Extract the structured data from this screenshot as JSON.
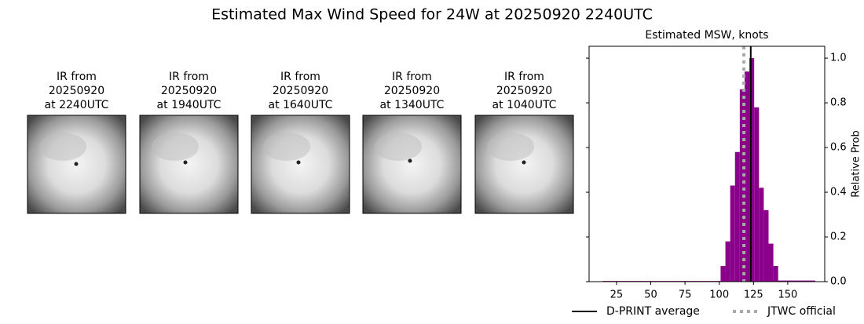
{
  "title": "Estimated Max Wind Speed for 24W at 20250920 2240UTC",
  "panels": [
    {
      "lines": [
        "IR from",
        "20250920",
        "at 2240UTC"
      ]
    },
    {
      "lines": [
        "IR from",
        "20250920",
        "at 1940UTC"
      ]
    },
    {
      "lines": [
        "IR from",
        "20250920",
        "at 1640UTC"
      ]
    },
    {
      "lines": [
        "IR from",
        "20250920",
        "at 1340UTC"
      ]
    },
    {
      "lines": [
        "IR from",
        "20250920",
        "at 1040UTC"
      ]
    }
  ],
  "chart_data": {
    "type": "histogram",
    "title": "Estimated MSW, knots",
    "y_label": "Relative Prob",
    "bins": [
      15,
      101,
      104.5,
      108,
      111.5,
      115,
      118.5,
      122,
      125.5,
      129,
      132.5,
      136,
      139.5,
      143,
      170
    ],
    "counts": [
      0.003,
      0.07,
      0.18,
      0.43,
      0.58,
      0.86,
      0.94,
      1.0,
      0.78,
      0.42,
      0.32,
      0.17,
      0.07,
      0.005
    ],
    "color": "#8b008b",
    "xlim": [
      5,
      177
    ],
    "xticks": [
      25,
      50,
      75,
      100,
      125,
      150
    ],
    "ylim": [
      0,
      1.053
    ],
    "yticks": [
      {
        "value": 0,
        "label": "0.0"
      },
      0.2,
      0.4,
      0.6,
      0.8,
      {
        "value": 1,
        "label": "1.0"
      }
    ],
    "lines": [
      {
        "name": "D-PRINT average",
        "value": 123,
        "color": "#000000",
        "style": "solid"
      },
      {
        "name": "JTWC official",
        "value": 118,
        "color": "#aaaaaa",
        "style": "dotted"
      }
    ]
  }
}
